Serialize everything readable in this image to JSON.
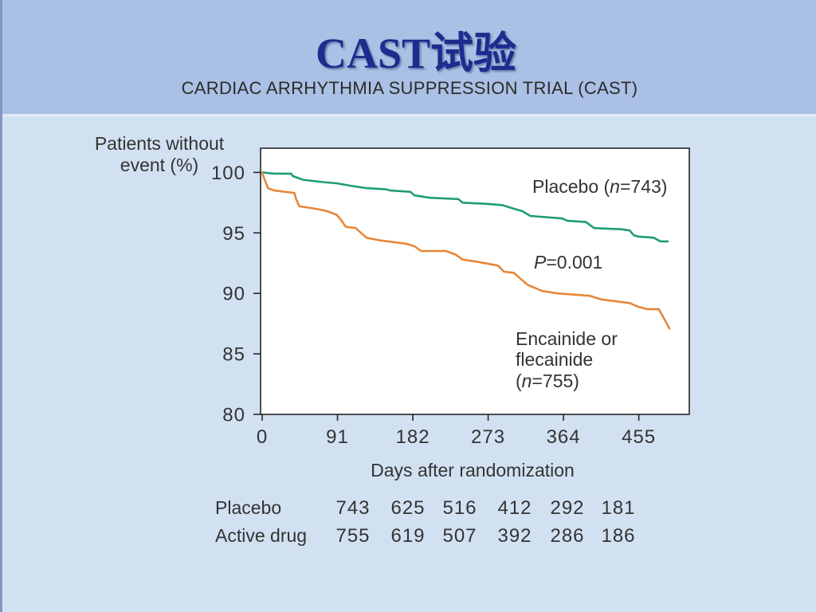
{
  "slide": {
    "title": "CAST试验"
  },
  "chart_data": {
    "type": "line",
    "title": "CARDIAC ARRHYTHMIA SUPPRESSION TRIAL (CAST)",
    "ylabel": [
      "Patients without",
      "event (%)"
    ],
    "xlabel": "Days after randomization",
    "xlim": [
      0,
      516
    ],
    "ylim": [
      80,
      102
    ],
    "xticks": [
      0,
      91,
      182,
      273,
      364,
      455
    ],
    "yticks": [
      80,
      85,
      90,
      95,
      100
    ],
    "grid": false,
    "series": [
      {
        "label": [
          [
            "Placebo (",
            "n",
            "=743)"
          ]
        ],
        "color": "#1e9c7a",
        "x": [
          0,
          15,
          35,
          37,
          49,
          73,
          90,
          107,
          126,
          150,
          155,
          179,
          184,
          203,
          237,
          242,
          271,
          290,
          304,
          314,
          324,
          362,
          369,
          391,
          401,
          434,
          444,
          449,
          454,
          473,
          481,
          490
        ],
        "y": [
          100,
          99.9,
          99.9,
          99.7,
          99.4,
          99.2,
          99.1,
          98.9,
          98.7,
          98.6,
          98.5,
          98.4,
          98.1,
          97.9,
          97.8,
          97.5,
          97.4,
          97.3,
          97.0,
          96.8,
          96.4,
          96.2,
          96.0,
          95.9,
          95.4,
          95.3,
          95.2,
          94.8,
          94.7,
          94.6,
          94.3,
          94.3
        ]
      },
      {
        "label": [
          [
            "Encainide or"
          ],
          [
            "flecainide"
          ],
          [
            "(",
            "n",
            "=755)"
          ]
        ],
        "color": "#e6873a",
        "x": [
          0,
          3,
          7,
          15,
          39,
          41,
          45,
          64,
          78,
          90,
          95,
          101,
          113,
          121,
          126,
          141,
          174,
          184,
          192,
          222,
          234,
          242,
          261,
          285,
          292,
          304,
          314,
          321,
          338,
          357,
          396,
          410,
          444,
          454,
          465,
          479,
          484,
          492
        ],
        "y": [
          100,
          99.4,
          98.7,
          98.5,
          98.3,
          97.8,
          97.2,
          97.0,
          96.8,
          96.5,
          96.1,
          95.5,
          95.4,
          94.9,
          94.6,
          94.4,
          94.1,
          93.9,
          93.5,
          93.5,
          93.2,
          92.8,
          92.6,
          92.3,
          91.8,
          91.7,
          91.1,
          90.7,
          90.2,
          90.0,
          89.8,
          89.5,
          89.2,
          88.9,
          88.7,
          88.7,
          88.1,
          87.1
        ]
      }
    ],
    "annotations": [
      {
        "runs": [
          "P",
          "=0.001"
        ]
      }
    ],
    "number_at_risk": [
      {
        "label": "Placebo",
        "values": [
          743,
          625,
          516,
          412,
          292,
          181
        ]
      },
      {
        "label": "Active drug",
        "values": [
          755,
          619,
          507,
          392,
          286,
          186
        ]
      }
    ]
  }
}
